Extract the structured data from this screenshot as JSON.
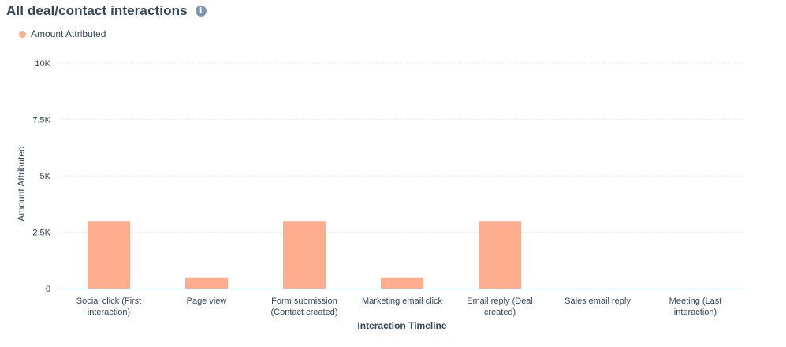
{
  "header": {
    "title": "All deal/contact interactions",
    "info_icon": "info-icon"
  },
  "colors": {
    "bar": "#ffad8f",
    "grid": "#e5e8eb",
    "axis": "#7c98b6",
    "text": "#33475b"
  },
  "chart_data": {
    "type": "bar",
    "title": "All deal/contact interactions",
    "xlabel": "Interaction Timeline",
    "ylabel": "Amount Attributed",
    "ylim": [
      0,
      10000
    ],
    "yticks": [
      0,
      2500,
      5000,
      7500,
      10000
    ],
    "ytick_labels": [
      "0",
      "2.5K",
      "5K",
      "7.5K",
      "10K"
    ],
    "grid": true,
    "legend_position": "top-left",
    "categories": [
      [
        "Social click (First",
        "interaction)"
      ],
      [
        "Page view"
      ],
      [
        "Form submission",
        "(Contact created)"
      ],
      [
        "Marketing email click"
      ],
      [
        "Email reply (Deal",
        "created)"
      ],
      [
        "Sales email reply"
      ],
      [
        "Meeting (Last",
        "interaction)"
      ]
    ],
    "series": [
      {
        "name": "Amount Attributed",
        "values": [
          3000,
          500,
          3000,
          500,
          3000,
          0,
          0
        ]
      }
    ]
  }
}
